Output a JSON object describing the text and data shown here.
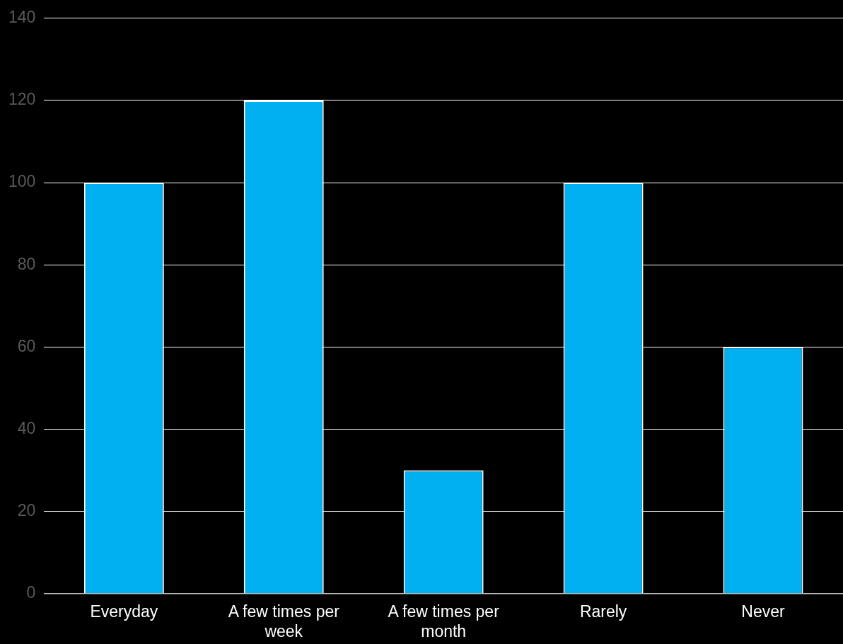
{
  "chart_data": {
    "type": "bar",
    "categories": [
      "Everyday",
      "A few times per week",
      "A few times per month",
      "Rarely",
      "Never"
    ],
    "values": [
      100,
      120,
      30,
      100,
      60
    ],
    "color": "#00b0f0",
    "ylim": [
      0,
      140
    ],
    "yticks": [
      0,
      20,
      40,
      60,
      80,
      100,
      120,
      140
    ],
    "grid": "y",
    "legend": false
  }
}
